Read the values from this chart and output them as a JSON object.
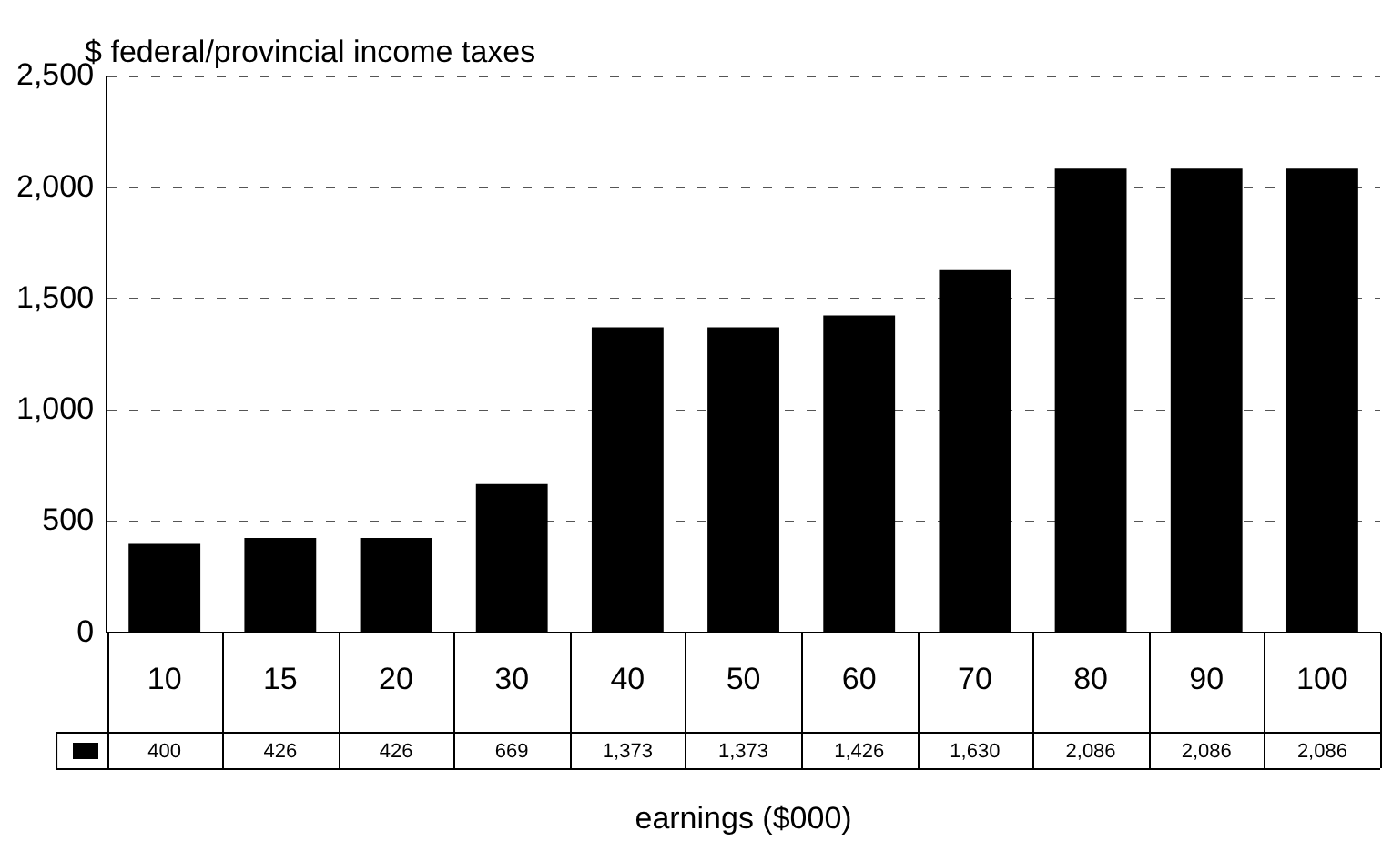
{
  "chart_data": {
    "type": "bar",
    "ylabel": "$ federal/provincial income taxes",
    "xlabel": "earnings ($000)",
    "categories": [
      "10",
      "15",
      "20",
      "30",
      "40",
      "50",
      "60",
      "70",
      "80",
      "90",
      "100"
    ],
    "values": [
      400,
      426,
      426,
      669,
      1373,
      1373,
      1426,
      1630,
      2086,
      2086,
      2086
    ],
    "value_labels": [
      "400",
      "426",
      "426",
      "669",
      "1,373",
      "1,373",
      "1,426",
      "1,630",
      "2,086",
      "2,086",
      "2,086"
    ],
    "color": "#000000",
    "ylim": [
      0,
      2500
    ],
    "yticks": [
      0,
      500,
      {
        "value": 1000,
        "label": "1,000"
      },
      {
        "value": 1500,
        "label": "1,500"
      },
      {
        "value": 2000,
        "label": "2,000"
      },
      {
        "value": 2500,
        "label": "2,500"
      }
    ],
    "grid": "y"
  }
}
